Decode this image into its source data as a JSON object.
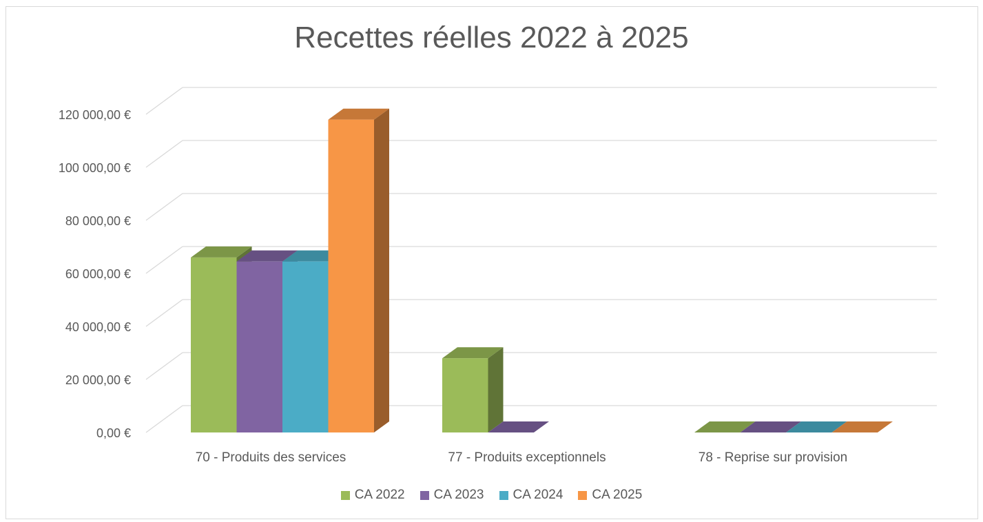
{
  "chart_data": {
    "type": "bar",
    "title": "Recettes réelles 2022 à 2025",
    "xlabel": "",
    "ylabel": "",
    "categories": [
      "70 - Produits des services",
      "77 - Produits exceptionnels",
      "78 - Reprise sur provision"
    ],
    "y_ticks": [
      "0,00 €",
      "20 000,00 €",
      "40 000,00 €",
      "60 000,00 €",
      "80 000,00 €",
      "100 000,00 €",
      "120 000,00 €"
    ],
    "ylim": [
      0,
      120000
    ],
    "grid": true,
    "legend_position": "bottom",
    "style": "3d-clustered-column",
    "series": [
      {
        "name": "CA 2022",
        "color": "#9BBB59",
        "values": [
          66000,
          28000,
          0
        ]
      },
      {
        "name": "CA 2023",
        "color": "#8064A2",
        "values": [
          64500,
          0,
          0
        ]
      },
      {
        "name": "CA 2024",
        "color": "#4BACC6",
        "values": [
          64500,
          null,
          0
        ]
      },
      {
        "name": "CA 2025",
        "color": "#F79646",
        "values": [
          118000,
          null,
          0
        ]
      }
    ]
  }
}
